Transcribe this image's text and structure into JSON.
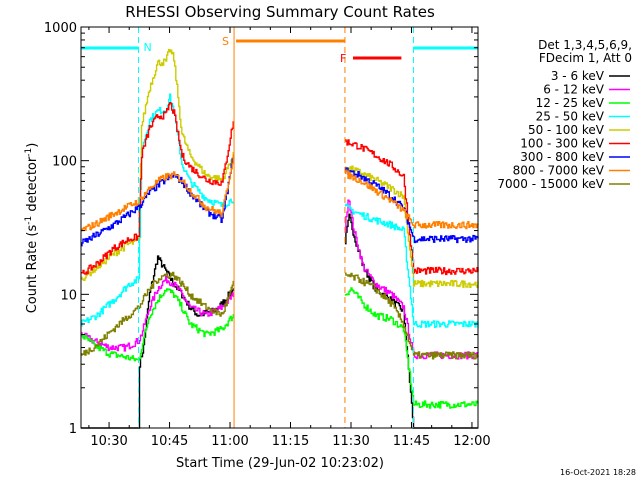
{
  "chart_data": {
    "type": "line",
    "title": "RHESSI Observing Summary Count Rates",
    "xlabel": "Start Time (29-Jun-02 10:23:02)",
    "ylabel_main": "Count Rate (s",
    "ylabel_sup1": "-1",
    "ylabel_mid": " detector",
    "ylabel_sup2": "-1",
    "ylabel_end": ")",
    "yscale": "log",
    "xlim_minutes": [
      23.04,
      121.5
    ],
    "ylim": [
      1,
      1000
    ],
    "x_ticks": [
      {
        "label": "10:30",
        "t": 30
      },
      {
        "label": "10:45",
        "t": 45
      },
      {
        "label": "11:00",
        "t": 60
      },
      {
        "label": "11:15",
        "t": 75
      },
      {
        "label": "11:30",
        "t": 90
      },
      {
        "label": "11:45",
        "t": 105
      },
      {
        "label": "12:00",
        "t": 120
      }
    ],
    "y_ticks": [
      {
        "label": "1",
        "v": 1
      },
      {
        "label": "10",
        "v": 10
      },
      {
        "label": "100",
        "v": 100
      },
      {
        "label": "1000",
        "v": 1000
      }
    ],
    "legend_header": [
      "Det 1,3,4,5,6,9,",
      "FDecim 1, Att 0"
    ],
    "legend_position": "right",
    "gap_minutes": [
      61.0,
      88.5
    ],
    "series": [
      {
        "name": "3 - 6 keV",
        "color": "#000000",
        "pre": [
          [
            23.04,
            1
          ],
          [
            33.0,
            1
          ],
          [
            37.3,
            1
          ],
          [
            37.5,
            3
          ],
          [
            38.5,
            4
          ],
          [
            40,
            10
          ],
          [
            42,
            19
          ],
          [
            44,
            15
          ],
          [
            46,
            12
          ],
          [
            48,
            10
          ],
          [
            50,
            8
          ],
          [
            52,
            7
          ],
          [
            56,
            7.5
          ],
          [
            58,
            8.5
          ],
          [
            60.8,
            11
          ]
        ],
        "post": [
          [
            88.5,
            25
          ],
          [
            89.5,
            38
          ],
          [
            91,
            26
          ],
          [
            93,
            16
          ],
          [
            96,
            11
          ],
          [
            100,
            9
          ],
          [
            103,
            7.5
          ],
          [
            105.5,
            1
          ],
          [
            121.5,
            1
          ]
        ]
      },
      {
        "name": "6 - 12 keV",
        "color": "#ff00ff",
        "pre": [
          [
            23.04,
            5
          ],
          [
            26,
            4.5
          ],
          [
            30,
            4
          ],
          [
            34,
            4
          ],
          [
            37.3,
            4.5
          ],
          [
            38,
            5
          ],
          [
            40,
            8
          ],
          [
            42,
            11
          ],
          [
            44,
            13
          ],
          [
            46,
            12
          ],
          [
            48,
            10
          ],
          [
            50,
            8
          ],
          [
            54,
            7
          ],
          [
            58,
            8
          ],
          [
            60.8,
            10
          ]
        ],
        "post": [
          [
            88.5,
            30
          ],
          [
            89.3,
            55
          ],
          [
            90.5,
            32
          ],
          [
            93,
            16
          ],
          [
            96,
            12
          ],
          [
            100,
            10
          ],
          [
            103,
            8
          ],
          [
            105.5,
            3.5
          ],
          [
            121.5,
            3.5
          ]
        ]
      },
      {
        "name": "12 - 25 keV",
        "color": "#00ff00",
        "pre": [
          [
            23.04,
            5
          ],
          [
            26,
            4.2
          ],
          [
            30,
            3.6
          ],
          [
            34,
            3.4
          ],
          [
            37.3,
            3.2
          ],
          [
            38,
            4
          ],
          [
            40,
            7
          ],
          [
            42,
            9
          ],
          [
            44,
            11
          ],
          [
            46,
            10
          ],
          [
            48,
            8
          ],
          [
            50,
            6
          ],
          [
            54,
            5
          ],
          [
            58,
            5.5
          ],
          [
            60.8,
            7
          ]
        ],
        "post": [
          [
            88.5,
            10
          ],
          [
            90,
            11
          ],
          [
            93,
            8.5
          ],
          [
            96,
            7
          ],
          [
            100,
            6.5
          ],
          [
            103,
            5.5
          ],
          [
            105.5,
            1.5
          ],
          [
            121.5,
            1.5
          ]
        ]
      },
      {
        "name": "25 - 50 keV",
        "color": "#00ffff",
        "pre": [
          [
            23.04,
            6
          ],
          [
            27,
            7
          ],
          [
            31,
            9
          ],
          [
            35,
            12
          ],
          [
            37.3,
            13
          ],
          [
            38,
            120
          ],
          [
            40,
            200
          ],
          [
            42,
            235
          ],
          [
            44,
            240
          ],
          [
            45,
            300
          ],
          [
            46,
            240
          ],
          [
            48,
            95
          ],
          [
            50,
            70
          ],
          [
            54,
            52
          ],
          [
            58,
            46
          ],
          [
            60.8,
            52
          ]
        ],
        "post": [
          [
            88.5,
            45
          ],
          [
            92,
            40
          ],
          [
            96,
            36
          ],
          [
            100,
            33
          ],
          [
            103,
            30
          ],
          [
            105.5,
            6
          ],
          [
            121.5,
            6
          ]
        ]
      },
      {
        "name": "50 - 100 keV",
        "color": "#cccc00",
        "pre": [
          [
            23.04,
            13
          ],
          [
            27,
            16
          ],
          [
            31,
            20
          ],
          [
            35,
            24
          ],
          [
            37.3,
            25
          ],
          [
            38,
            180
          ],
          [
            40,
            350
          ],
          [
            42,
            540
          ],
          [
            44,
            550
          ],
          [
            45,
            680
          ],
          [
            46,
            590
          ],
          [
            48,
            160
          ],
          [
            50,
            110
          ],
          [
            54,
            78
          ],
          [
            58,
            72
          ],
          [
            60.8,
            110
          ]
        ],
        "post": [
          [
            88.5,
            90
          ],
          [
            92,
            82
          ],
          [
            96,
            72
          ],
          [
            100,
            62
          ],
          [
            103,
            54
          ],
          [
            105.5,
            12
          ],
          [
            121.5,
            12
          ]
        ]
      },
      {
        "name": "100 - 300 keV",
        "color": "#ff0000",
        "pre": [
          [
            23.04,
            14
          ],
          [
            27,
            17
          ],
          [
            31,
            22
          ],
          [
            35,
            26
          ],
          [
            37.3,
            27
          ],
          [
            38,
            110
          ],
          [
            40,
            175
          ],
          [
            42,
            215
          ],
          [
            44,
            220
          ],
          [
            45,
            270
          ],
          [
            46,
            230
          ],
          [
            48,
            110
          ],
          [
            50,
            90
          ],
          [
            54,
            72
          ],
          [
            58,
            68
          ],
          [
            60.8,
            200
          ]
        ],
        "post": [
          [
            88.5,
            140
          ],
          [
            92,
            128
          ],
          [
            96,
            110
          ],
          [
            100,
            92
          ],
          [
            103,
            76
          ],
          [
            105.5,
            15
          ],
          [
            121.5,
            15
          ]
        ]
      },
      {
        "name": "300 - 800 keV",
        "color": "#0000ff",
        "pre": [
          [
            23.04,
            24
          ],
          [
            27,
            28
          ],
          [
            31,
            33
          ],
          [
            35,
            40
          ],
          [
            37.3,
            45
          ],
          [
            40,
            58
          ],
          [
            42,
            65
          ],
          [
            44,
            72
          ],
          [
            46,
            78
          ],
          [
            48,
            70
          ],
          [
            50,
            58
          ],
          [
            54,
            42
          ],
          [
            58,
            36
          ],
          [
            60.8,
            110
          ]
        ],
        "post": [
          [
            88.5,
            85
          ],
          [
            92,
            78
          ],
          [
            96,
            66
          ],
          [
            100,
            54
          ],
          [
            103,
            44
          ],
          [
            105.5,
            26
          ],
          [
            121.5,
            26
          ]
        ]
      },
      {
        "name": "800 - 7000 keV",
        "color": "#ff8000",
        "pre": [
          [
            23.04,
            30
          ],
          [
            27,
            34
          ],
          [
            31,
            40
          ],
          [
            35,
            46
          ],
          [
            37.3,
            50
          ],
          [
            40,
            62
          ],
          [
            42,
            70
          ],
          [
            44,
            76
          ],
          [
            46,
            78
          ],
          [
            48,
            72
          ],
          [
            50,
            60
          ],
          [
            54,
            45
          ],
          [
            58,
            40
          ],
          [
            60.8,
            110
          ]
        ],
        "post": [
          [
            88.5,
            80
          ],
          [
            92,
            72
          ],
          [
            96,
            60
          ],
          [
            100,
            50
          ],
          [
            103,
            42
          ],
          [
            105.5,
            33
          ],
          [
            121.5,
            33
          ]
        ]
      },
      {
        "name": "7000 - 15000 keV",
        "color": "#808000",
        "pre": [
          [
            23.04,
            3.5
          ],
          [
            27,
            4.2
          ],
          [
            31,
            5.5
          ],
          [
            35,
            7
          ],
          [
            37.3,
            8
          ],
          [
            40,
            11
          ],
          [
            42,
            13
          ],
          [
            44,
            14
          ],
          [
            46,
            14
          ],
          [
            48,
            12
          ],
          [
            50,
            10
          ],
          [
            54,
            8
          ],
          [
            58,
            7
          ],
          [
            60.8,
            12
          ]
        ],
        "post": [
          [
            88.5,
            14
          ],
          [
            92,
            13
          ],
          [
            96,
            11
          ],
          [
            100,
            8.5
          ],
          [
            103,
            6
          ],
          [
            105.5,
            3.5
          ],
          [
            121.5,
            3.5
          ]
        ]
      }
    ],
    "annotations": [
      {
        "label": "N",
        "kind": "night",
        "color": "#00ffff"
      },
      {
        "label": "S",
        "kind": "saa",
        "color": "#ff8000"
      },
      {
        "label": "F",
        "kind": "flare",
        "color": "#ff0000"
      }
    ],
    "intervals": {
      "night": [
        [
          23.04,
          37.3
        ],
        [
          105.5,
          121.5
        ]
      ],
      "saa": [
        [
          61.0,
          88.5
        ]
      ],
      "flare": [
        [
          90.5,
          102.5
        ]
      ]
    },
    "timestamp": "16-Oct-2021 18:28"
  }
}
